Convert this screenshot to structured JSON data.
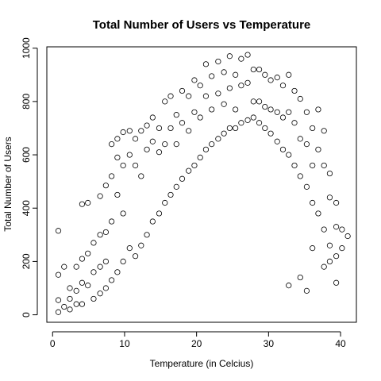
{
  "chart_data": {
    "type": "scatter",
    "title": "Total Number of Users vs Temperature",
    "xlabel": "Temperature (in Celcius)",
    "ylabel": "Total Number of Users",
    "xlim": [
      -0.8,
      42.2
    ],
    "ylim": [
      -28,
      1005
    ],
    "xticks": [
      0,
      10,
      20,
      30,
      40
    ],
    "yticks": [
      0,
      200,
      400,
      600,
      800,
      1000
    ],
    "grid": false,
    "marker": "open-circle",
    "series": [
      {
        "points": [
          [
            0.8,
            315
          ],
          [
            0.8,
            150
          ],
          [
            0.8,
            55
          ],
          [
            0.8,
            10
          ],
          [
            1.6,
            180
          ],
          [
            1.6,
            30
          ],
          [
            2.4,
            100
          ],
          [
            2.4,
            60
          ],
          [
            2.4,
            20
          ],
          [
            3.3,
            180
          ],
          [
            3.3,
            90
          ],
          [
            3.3,
            40
          ],
          [
            4.1,
            415
          ],
          [
            4.1,
            210
          ],
          [
            4.1,
            120
          ],
          [
            4.1,
            40
          ],
          [
            4.9,
            420
          ],
          [
            4.9,
            230
          ],
          [
            4.9,
            110
          ],
          [
            5.7,
            270
          ],
          [
            5.7,
            160
          ],
          [
            6.6,
            445
          ],
          [
            6.6,
            300
          ],
          [
            6.6,
            180
          ],
          [
            7.4,
            485
          ],
          [
            7.4,
            310
          ],
          [
            7.4,
            200
          ],
          [
            8.2,
            640
          ],
          [
            8.2,
            520
          ],
          [
            8.2,
            350
          ],
          [
            9.0,
            660
          ],
          [
            9.0,
            590
          ],
          [
            9.0,
            450
          ],
          [
            9.8,
            685
          ],
          [
            9.8,
            560
          ],
          [
            9.8,
            380
          ],
          [
            10.7,
            690
          ],
          [
            10.7,
            600
          ],
          [
            11.5,
            660
          ],
          [
            11.5,
            560
          ],
          [
            12.3,
            690
          ],
          [
            12.3,
            520
          ],
          [
            13.1,
            710
          ],
          [
            13.1,
            620
          ],
          [
            13.9,
            740
          ],
          [
            13.9,
            650
          ],
          [
            14.8,
            700
          ],
          [
            14.8,
            610
          ],
          [
            15.6,
            800
          ],
          [
            15.6,
            640
          ],
          [
            16.4,
            820
          ],
          [
            16.4,
            700
          ],
          [
            17.2,
            750
          ],
          [
            17.2,
            640
          ],
          [
            18.0,
            840
          ],
          [
            18.0,
            720
          ],
          [
            18.9,
            820
          ],
          [
            18.9,
            690
          ],
          [
            19.7,
            880
          ],
          [
            19.7,
            760
          ],
          [
            20.5,
            860
          ],
          [
            20.5,
            740
          ],
          [
            21.3,
            940
          ],
          [
            21.3,
            820
          ],
          [
            22.1,
            895
          ],
          [
            22.1,
            770
          ],
          [
            23.0,
            950
          ],
          [
            23.0,
            830
          ],
          [
            23.8,
            910
          ],
          [
            23.8,
            790
          ],
          [
            24.6,
            970
          ],
          [
            24.6,
            850
          ],
          [
            25.4,
            900
          ],
          [
            25.4,
            770
          ],
          [
            26.2,
            960
          ],
          [
            26.2,
            860
          ],
          [
            27.1,
            975
          ],
          [
            27.1,
            870
          ],
          [
            27.9,
            920
          ],
          [
            27.9,
            800
          ],
          [
            28.7,
            920
          ],
          [
            28.7,
            800
          ],
          [
            29.5,
            900
          ],
          [
            29.5,
            780
          ],
          [
            30.3,
            880
          ],
          [
            30.3,
            770
          ],
          [
            31.2,
            890
          ],
          [
            31.2,
            760
          ],
          [
            32.0,
            860
          ],
          [
            32.0,
            740
          ],
          [
            32.8,
            900
          ],
          [
            32.8,
            760
          ],
          [
            33.6,
            840
          ],
          [
            33.6,
            720
          ],
          [
            34.4,
            810
          ],
          [
            34.4,
            660
          ],
          [
            35.3,
            760
          ],
          [
            35.3,
            640
          ],
          [
            36.1,
            700
          ],
          [
            36.1,
            560
          ],
          [
            36.9,
            770
          ],
          [
            36.9,
            620
          ],
          [
            37.7,
            690
          ],
          [
            37.7,
            560
          ],
          [
            38.5,
            530
          ],
          [
            38.5,
            440
          ],
          [
            39.4,
            420
          ],
          [
            39.4,
            330
          ],
          [
            40.2,
            320
          ],
          [
            40.2,
            250
          ],
          [
            41.0,
            295
          ],
          [
            5.7,
            60
          ],
          [
            6.6,
            80
          ],
          [
            7.4,
            100
          ],
          [
            8.2,
            130
          ],
          [
            9.0,
            160
          ],
          [
            9.8,
            200
          ],
          [
            10.7,
            250
          ],
          [
            11.5,
            220
          ],
          [
            12.3,
            260
          ],
          [
            13.1,
            300
          ],
          [
            13.9,
            350
          ],
          [
            14.8,
            380
          ],
          [
            15.6,
            420
          ],
          [
            16.4,
            450
          ],
          [
            17.2,
            480
          ],
          [
            18.0,
            510
          ],
          [
            18.9,
            540
          ],
          [
            19.7,
            560
          ],
          [
            20.5,
            590
          ],
          [
            21.3,
            620
          ],
          [
            22.1,
            640
          ],
          [
            23.0,
            660
          ],
          [
            23.8,
            680
          ],
          [
            24.6,
            700
          ],
          [
            25.4,
            700
          ],
          [
            26.2,
            720
          ],
          [
            27.1,
            730
          ],
          [
            27.9,
            740
          ],
          [
            28.7,
            720
          ],
          [
            29.5,
            700
          ],
          [
            30.3,
            680
          ],
          [
            31.2,
            650
          ],
          [
            32.0,
            620
          ],
          [
            32.8,
            600
          ],
          [
            33.6,
            560
          ],
          [
            34.4,
            520
          ],
          [
            35.3,
            480
          ],
          [
            36.1,
            420
          ],
          [
            36.9,
            380
          ],
          [
            37.7,
            320
          ],
          [
            38.5,
            260
          ],
          [
            39.4,
            220
          ],
          [
            36.1,
            250
          ],
          [
            37.7,
            180
          ],
          [
            38.5,
            200
          ],
          [
            39.4,
            120
          ],
          [
            34.4,
            140
          ],
          [
            35.3,
            90
          ],
          [
            32.8,
            110
          ]
        ]
      }
    ]
  }
}
